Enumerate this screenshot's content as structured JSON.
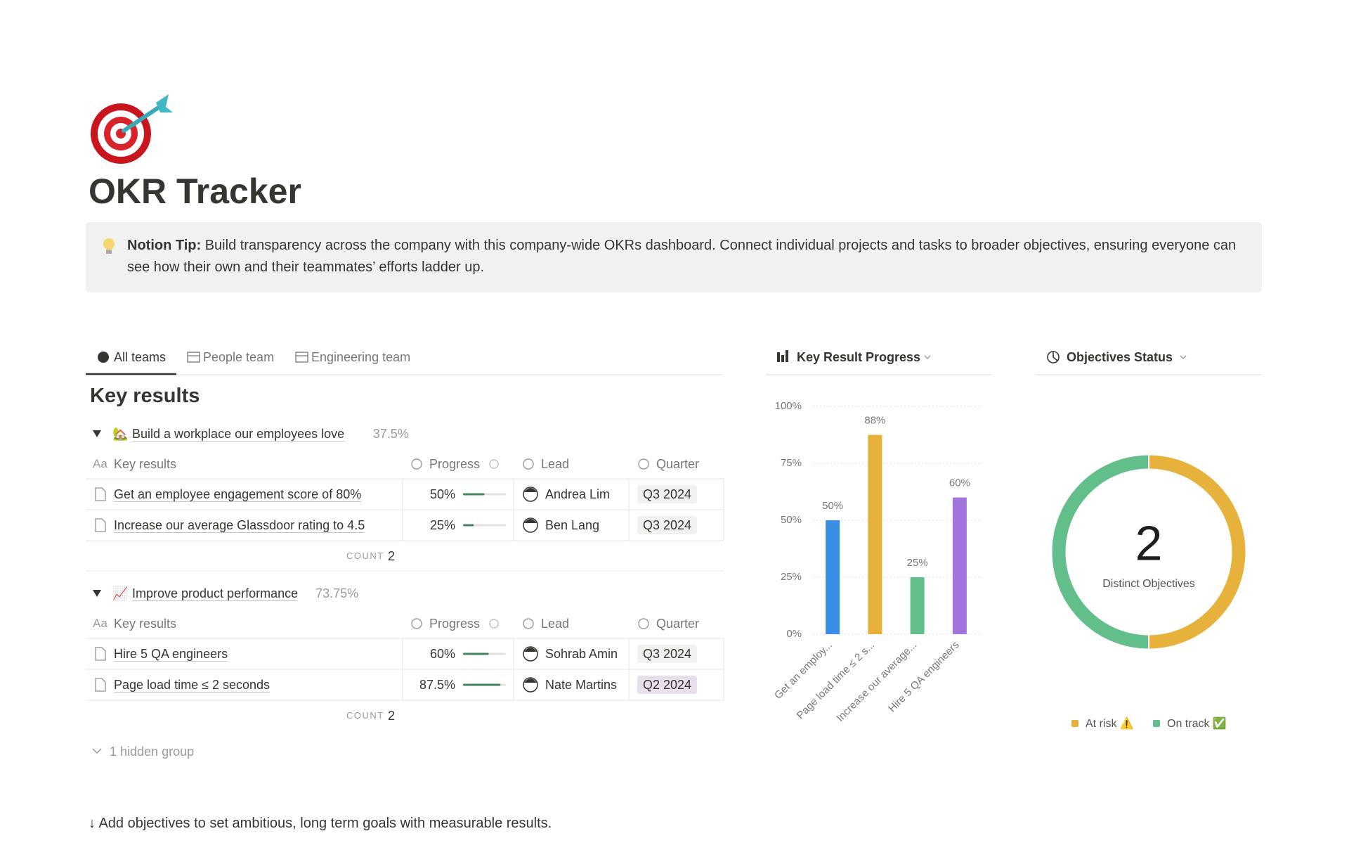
{
  "header": {
    "title": "OKR Tracker"
  },
  "tip": {
    "label": "Notion Tip:",
    "text": "Build transparency across the company with this company-wide OKRs dashboard. Connect individual projects and tasks to broader objectives, ensuring everyone can see how their own and their teammates’ efforts ladder up."
  },
  "tabs": [
    "All teams",
    "People team",
    "Engineering team"
  ],
  "table": {
    "title": "Key results",
    "name_icon": "Aa",
    "columns": [
      "Key results",
      "Progress",
      "Lead",
      "Quarter"
    ],
    "count_label": "COUNT",
    "groups": [
      {
        "icon": "🏡",
        "name": "Build a workplace our employees love",
        "summary": "37.5%",
        "count": 2,
        "rows": [
          {
            "name": "Get an employee engagement score of 80%",
            "progress": {
              "value": 50,
              "label": "50%"
            },
            "lead": "Andrea Lim",
            "quarter": "Q3 2024"
          },
          {
            "name": "Increase our average Glassdoor rating to 4.5",
            "progress": {
              "value": 25,
              "label": "25%"
            },
            "lead": "Ben Lang",
            "quarter": "Q3 2024"
          }
        ]
      },
      {
        "icon": "📈",
        "name": "Improve product performance",
        "summary": "73.75%",
        "count": 2,
        "rows": [
          {
            "name": "Hire 5 QA engineers",
            "progress": {
              "value": 60,
              "label": "60%"
            },
            "lead": "Sohrab Amin",
            "quarter": "Q3 2024"
          },
          {
            "name": "Page load time ≤ 2 seconds",
            "progress": {
              "value": 87.5,
              "label": "87.5%"
            },
            "lead": "Nate Martins",
            "quarter": "Q2 2024"
          }
        ]
      }
    ],
    "hidden": "1 hidden group"
  },
  "footer": "↓ Add objectives to set ambitious, long term goals with measurable results.",
  "chart_data": [
    {
      "type": "bar",
      "title": "Key Result Progress",
      "categories": [
        "Get an employ...",
        "Page load time ≤ 2 s...",
        "Increase our average...",
        "Hire 5 QA engineers"
      ],
      "values": [
        50,
        87.5,
        25,
        60
      ],
      "value_labels": [
        "50%",
        "88%",
        "25%",
        "60%"
      ],
      "colors": [
        "#3a8ee6",
        "#e6b23c",
        "#62bf8c",
        "#a274dc"
      ],
      "ylim": [
        0,
        100
      ],
      "yticks": [
        {
          "value": 0,
          "label": "0%"
        },
        {
          "value": 25,
          "label": "25%"
        },
        {
          "value": 50,
          "label": "50%"
        },
        {
          "value": 75,
          "label": "75%"
        },
        {
          "value": 100,
          "label": "100%"
        }
      ],
      "grid": true
    },
    {
      "type": "pie",
      "title": "Objectives Status",
      "center_value": 2,
      "center_label": "Distinct Objectives",
      "series": [
        {
          "name": "At risk ⚠️",
          "color": "#e6b23c",
          "values": [
            1
          ]
        },
        {
          "name": "On track ✅",
          "color": "#62bf8c",
          "values": [
            1
          ]
        }
      ]
    }
  ]
}
